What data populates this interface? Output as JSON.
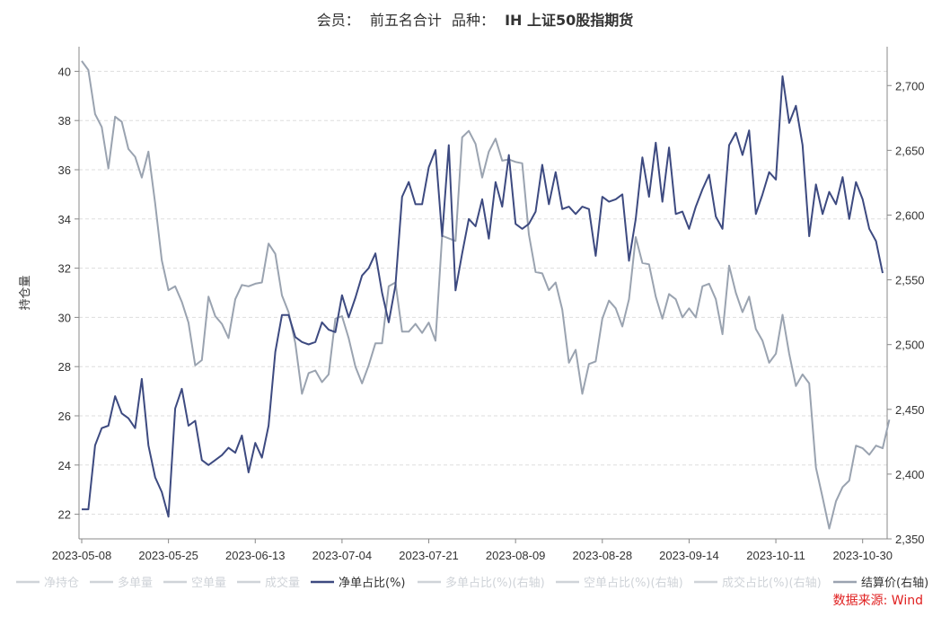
{
  "title": {
    "member_label": "会员：",
    "member_value": "前五名合计",
    "variety_label": "品种：",
    "variety_value": "IH 上证50股指期货"
  },
  "source": "数据来源: Wind",
  "colors": {
    "net_ratio": "#3d4a80",
    "settle": "#9aa3b0",
    "inactive_legend": "#cfd3d8",
    "grid": "#dddddd",
    "axis": "#888888"
  },
  "chart_data": {
    "type": "line",
    "title": "会员： 前五名合计 品种： IH 上证50股指期货",
    "xlabel": "",
    "ylabel": "持仓量",
    "y_left": {
      "min": 21,
      "max": 41,
      "ticks": [
        22,
        24,
        26,
        28,
        30,
        32,
        34,
        36,
        38,
        40
      ]
    },
    "y_right": {
      "min": 2350,
      "max": 2730,
      "ticks": [
        "2,350",
        "2,400",
        "2,450",
        "2,500",
        "2,550",
        "2,600",
        "2,650",
        "2,700"
      ],
      "tick_values": [
        2350,
        2400,
        2450,
        2500,
        2550,
        2600,
        2650,
        2700
      ]
    },
    "x_ticks": [
      "2023-05-08",
      "2023-05-25",
      "2023-06-13",
      "2023-07-04",
      "2023-07-21",
      "2023-08-09",
      "2023-08-28",
      "2023-09-14",
      "2023-10-11",
      "2023-10-30"
    ],
    "x_tick_index": [
      0,
      13,
      26,
      39,
      52,
      65,
      78,
      91,
      104,
      117
    ],
    "grid": "horizontal-dashed",
    "legend_position": "bottom",
    "legend": [
      {
        "name": "净持仓",
        "active": false
      },
      {
        "name": "多单量",
        "active": false
      },
      {
        "name": "空单量",
        "active": false
      },
      {
        "name": "成交量",
        "active": false
      },
      {
        "name": "净单占比(%)",
        "active": true,
        "color": "#3d4a80"
      },
      {
        "name": "多单占比(%)(右轴)",
        "active": false
      },
      {
        "name": "空单占比(%)(右轴)",
        "active": false
      },
      {
        "name": "成交占比(%)(右轴)",
        "active": false
      },
      {
        "name": "结算价(右轴)",
        "active": true,
        "color": "#9aa3b0"
      }
    ],
    "series": [
      {
        "name": "净单占比(%)",
        "axis": "left",
        "values": [
          22.2,
          22.2,
          24.8,
          25.5,
          25.6,
          26.8,
          26.1,
          25.9,
          25.5,
          27.5,
          24.8,
          23.5,
          22.9,
          21.9,
          26.3,
          27.1,
          25.6,
          25.8,
          24.2,
          24.0,
          24.2,
          24.4,
          24.7,
          24.5,
          25.2,
          23.7,
          24.9,
          24.3,
          25.6,
          28.6,
          30.1,
          30.1,
          29.2,
          29.0,
          28.9,
          29.0,
          29.8,
          29.5,
          29.4,
          30.9,
          30.0,
          30.8,
          31.7,
          32.0,
          32.6,
          31.0,
          29.8,
          31.3,
          34.9,
          35.5,
          34.6,
          34.6,
          36.1,
          36.8,
          33.3,
          37.0,
          31.1,
          32.6,
          34.0,
          33.7,
          34.8,
          33.2,
          35.5,
          34.5,
          36.6,
          33.8,
          33.6,
          33.8,
          34.3,
          36.2,
          34.6,
          35.9,
          34.4,
          34.5,
          34.2,
          34.5,
          34.4,
          32.5,
          34.9,
          34.7,
          34.8,
          35.0,
          32.3,
          34.0,
          36.5,
          34.9,
          37.1,
          34.7,
          36.9,
          34.2,
          34.3,
          33.6,
          34.5,
          35.2,
          35.8,
          34.1,
          33.6,
          37.0,
          37.5,
          36.6,
          37.6,
          34.2,
          35.0,
          35.9,
          35.6,
          39.8,
          37.9,
          38.6,
          37.0,
          33.3,
          35.4,
          34.2,
          35.1,
          34.6,
          35.7,
          34.0,
          35.5,
          34.8,
          33.6,
          33.1,
          31.8
        ]
      },
      {
        "name": "结算价(右轴)",
        "axis": "right",
        "values": [
          2719,
          2712,
          2678,
          2668,
          2636,
          2676,
          2672,
          2651,
          2645,
          2629,
          2649,
          2609,
          2565,
          2542,
          2545,
          2533,
          2517,
          2484,
          2488,
          2537,
          2522,
          2516,
          2505,
          2535,
          2546,
          2545,
          2547,
          2548,
          2578,
          2570,
          2538,
          2525,
          2501,
          2462,
          2478,
          2480,
          2471,
          2477,
          2520,
          2522,
          2505,
          2483,
          2470,
          2484,
          2501,
          2501,
          2545,
          2548,
          2510,
          2510,
          2516,
          2509,
          2517,
          2503,
          2584,
          2582,
          2580,
          2660,
          2665,
          2655,
          2629,
          2649,
          2659,
          2642,
          2643,
          2641,
          2640,
          2585,
          2556,
          2555,
          2542,
          2548,
          2527,
          2486,
          2496,
          2462,
          2485,
          2487,
          2520,
          2534,
          2528,
          2514,
          2535,
          2583,
          2563,
          2562,
          2537,
          2520,
          2539,
          2535,
          2521,
          2528,
          2521,
          2545,
          2547,
          2535,
          2508,
          2561,
          2540,
          2525,
          2537,
          2512,
          2503,
          2486,
          2493,
          2523,
          2493,
          2468,
          2477,
          2470,
          2405,
          2382,
          2358,
          2379,
          2390,
          2395,
          2422,
          2420,
          2415,
          2422,
          2420,
          2442
        ]
      }
    ]
  }
}
